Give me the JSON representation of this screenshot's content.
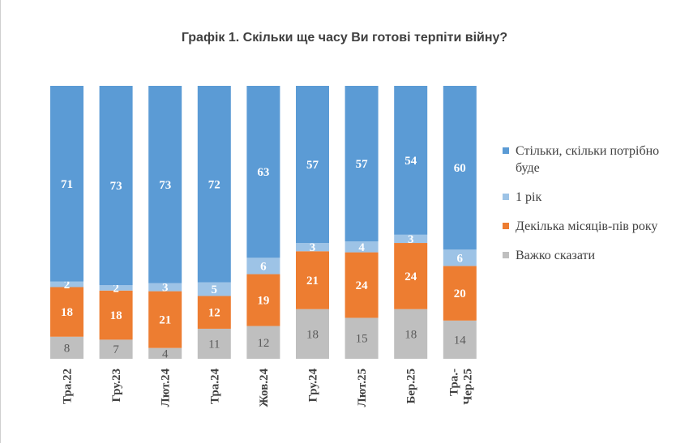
{
  "chart_data": {
    "type": "bar",
    "stacked": true,
    "percent": true,
    "title": "Графік 1. Скільки ще часу Ви готові терпіти війну?",
    "categories": [
      "Тра.22",
      "Гру.23",
      "Лют.24",
      "Тра.24",
      "Жов.24",
      "Гру.24",
      "Лют.25",
      "Бер.25",
      "Тра.-Чер.25"
    ],
    "series": [
      {
        "name": "Важко сказати",
        "color": "#bfbfbf",
        "label_color": "#595959",
        "values": [
          8,
          7,
          4,
          11,
          12,
          18,
          15,
          18,
          14
        ]
      },
      {
        "name": "Декілька місяців-пів року",
        "color": "#ed7d31",
        "label_color": "#ffffff",
        "values": [
          18,
          18,
          21,
          12,
          19,
          21,
          24,
          24,
          20
        ]
      },
      {
        "name": "1 рік",
        "color": "#9dc3e6",
        "label_color": "#ffffff",
        "values": [
          2,
          2,
          3,
          5,
          6,
          3,
          4,
          3,
          6
        ]
      },
      {
        "name": "Стільки, скільки потрібно буде",
        "color": "#5b9bd5",
        "label_color": "#ffffff",
        "values": [
          71,
          73,
          73,
          72,
          63,
          57,
          57,
          54,
          60
        ]
      }
    ],
    "legend": [
      "Стільки, скільки потрібно буде",
      "1 рік",
      "Декілька місяців-пів року",
      "Важко сказати"
    ],
    "legend_position": "right",
    "grid": false
  }
}
